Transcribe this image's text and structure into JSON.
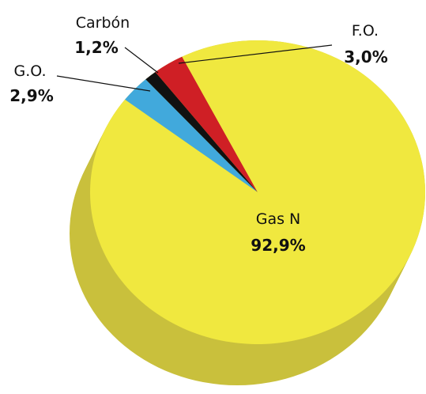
{
  "chart_data": {
    "type": "pie",
    "categories": [
      "G.O.",
      "Carbón",
      "F.O.",
      "Gas N"
    ],
    "values": [
      2.9,
      1.2,
      3.0,
      92.9
    ],
    "value_labels": [
      "2,9%",
      "1,2%",
      "3,0%",
      "92,9%"
    ],
    "colors": [
      "#41a9dc",
      "#111111",
      "#cf1f25",
      "#f0e83f"
    ],
    "side_color": "#c9c03c"
  }
}
